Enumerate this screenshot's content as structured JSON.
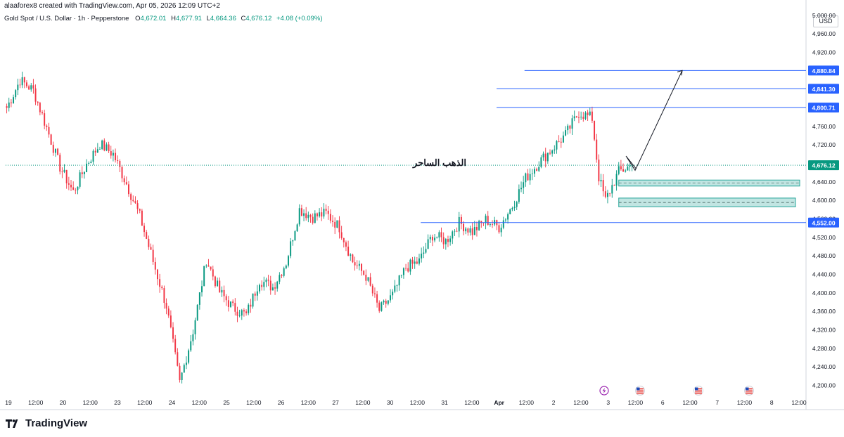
{
  "header": {
    "created_by": "alaaforex8 created with TradingView.com, Apr 05, 2026 12:09 UTC+2"
  },
  "symbol_bar": {
    "title": "Gold Spot / U.S. Dollar · 1h · Pepperstone",
    "open_label": "O",
    "open": "4,672.01",
    "high_label": "H",
    "high": "4,677.91",
    "low_label": "L",
    "low": "4,664.36",
    "close_label": "C",
    "close": "4,676.12",
    "change": "+4.08 (+0.09%)"
  },
  "currency": "USD",
  "brand": {
    "name": "TradingView"
  },
  "colors": {
    "up": "#089981",
    "down": "#f23645",
    "level_line": "#2962ff",
    "zone_fill": "#b2dfdb",
    "current_price_bg": "#089981"
  },
  "chart_data": {
    "type": "candlestick",
    "price_axis": {
      "ticks": [
        4200,
        4240,
        4280,
        4320,
        4360,
        4400,
        4440,
        4480,
        4520,
        4560,
        4600,
        4640,
        4680,
        4720,
        4760,
        4800,
        4840,
        4880,
        4920,
        4960,
        5000
      ],
      "tick_labels": [
        "4,200.00",
        "4,240.00",
        "4,280.00",
        "4,320.00",
        "4,360.00",
        "4,400.00",
        "4,440.00",
        "4,480.00",
        "4,520.00",
        "4,560.00",
        "4,600.00",
        "4,640.00",
        "4,680.00",
        "4,720.00",
        "4,760.00",
        "4,800.00",
        "4,840.00",
        "4,880.00",
        "4,920.00",
        "4,960.00",
        "5,000.00"
      ],
      "range": [
        4178,
        5012
      ]
    },
    "time_axis": {
      "labels": [
        "19",
        "12:00",
        "20",
        "12:00",
        "23",
        "12:00",
        "24",
        "12:00",
        "25",
        "12:00",
        "26",
        "12:00",
        "27",
        "12:00",
        "30",
        "12:00",
        "31",
        "12:00",
        "Apr",
        "12:00",
        "2",
        "12:00",
        "3",
        "12:00",
        "6",
        "12:00",
        "7",
        "12:00",
        "8",
        "12:00"
      ],
      "bold": [
        "Apr"
      ]
    },
    "price_path": [
      [
        0,
        4800
      ],
      [
        6,
        4860
      ],
      [
        12,
        4838
      ],
      [
        18,
        4757
      ],
      [
        24,
        4672
      ],
      [
        30,
        4618
      ],
      [
        36,
        4678
      ],
      [
        42,
        4722
      ],
      [
        48,
        4700
      ],
      [
        54,
        4636
      ],
      [
        60,
        4566
      ],
      [
        66,
        4468
      ],
      [
        72,
        4372
      ],
      [
        78,
        4205
      ],
      [
        84,
        4318
      ],
      [
        90,
        4472
      ],
      [
        96,
        4402
      ],
      [
        102,
        4368
      ],
      [
        108,
        4352
      ],
      [
        114,
        4428
      ],
      [
        120,
        4412
      ],
      [
        126,
        4466
      ],
      [
        132,
        4580
      ],
      [
        138,
        4564
      ],
      [
        144,
        4572
      ],
      [
        150,
        4542
      ],
      [
        156,
        4468
      ],
      [
        162,
        4436
      ],
      [
        168,
        4362
      ],
      [
        174,
        4395
      ],
      [
        180,
        4455
      ],
      [
        186,
        4468
      ],
      [
        192,
        4525
      ],
      [
        198,
        4512
      ],
      [
        204,
        4552
      ],
      [
        210,
        4532
      ],
      [
        216,
        4558
      ],
      [
        222,
        4542
      ],
      [
        228,
        4588
      ],
      [
        234,
        4648
      ],
      [
        240,
        4682
      ],
      [
        246,
        4712
      ],
      [
        252,
        4742
      ],
      [
        258,
        4790
      ],
      [
        264,
        4778
      ],
      [
        267,
        4650
      ],
      [
        270,
        4600
      ],
      [
        276,
        4662
      ],
      [
        282,
        4676
      ]
    ],
    "current_price": 4676.12,
    "current_price_label": "4,676.12",
    "horizontal_levels": [
      {
        "price": 4880.84,
        "label": "4,880.84"
      },
      {
        "price": 4841.3,
        "label": "4,841.30"
      },
      {
        "price": 4800.71,
        "label": "4,800.71"
      },
      {
        "price": 4552.0,
        "label": "4,552.00"
      }
    ],
    "zones": [
      {
        "top": 4644,
        "bottom": 4631
      },
      {
        "top": 4605,
        "bottom": 4586
      }
    ],
    "projection_path": [
      [
        4668,
        0
      ],
      [
        4696,
        1
      ],
      [
        4665,
        2
      ],
      [
        4880.84,
        3
      ]
    ],
    "annotation": "الذهب الساحر",
    "events": [
      "lightning",
      "us",
      "us",
      "us"
    ]
  }
}
